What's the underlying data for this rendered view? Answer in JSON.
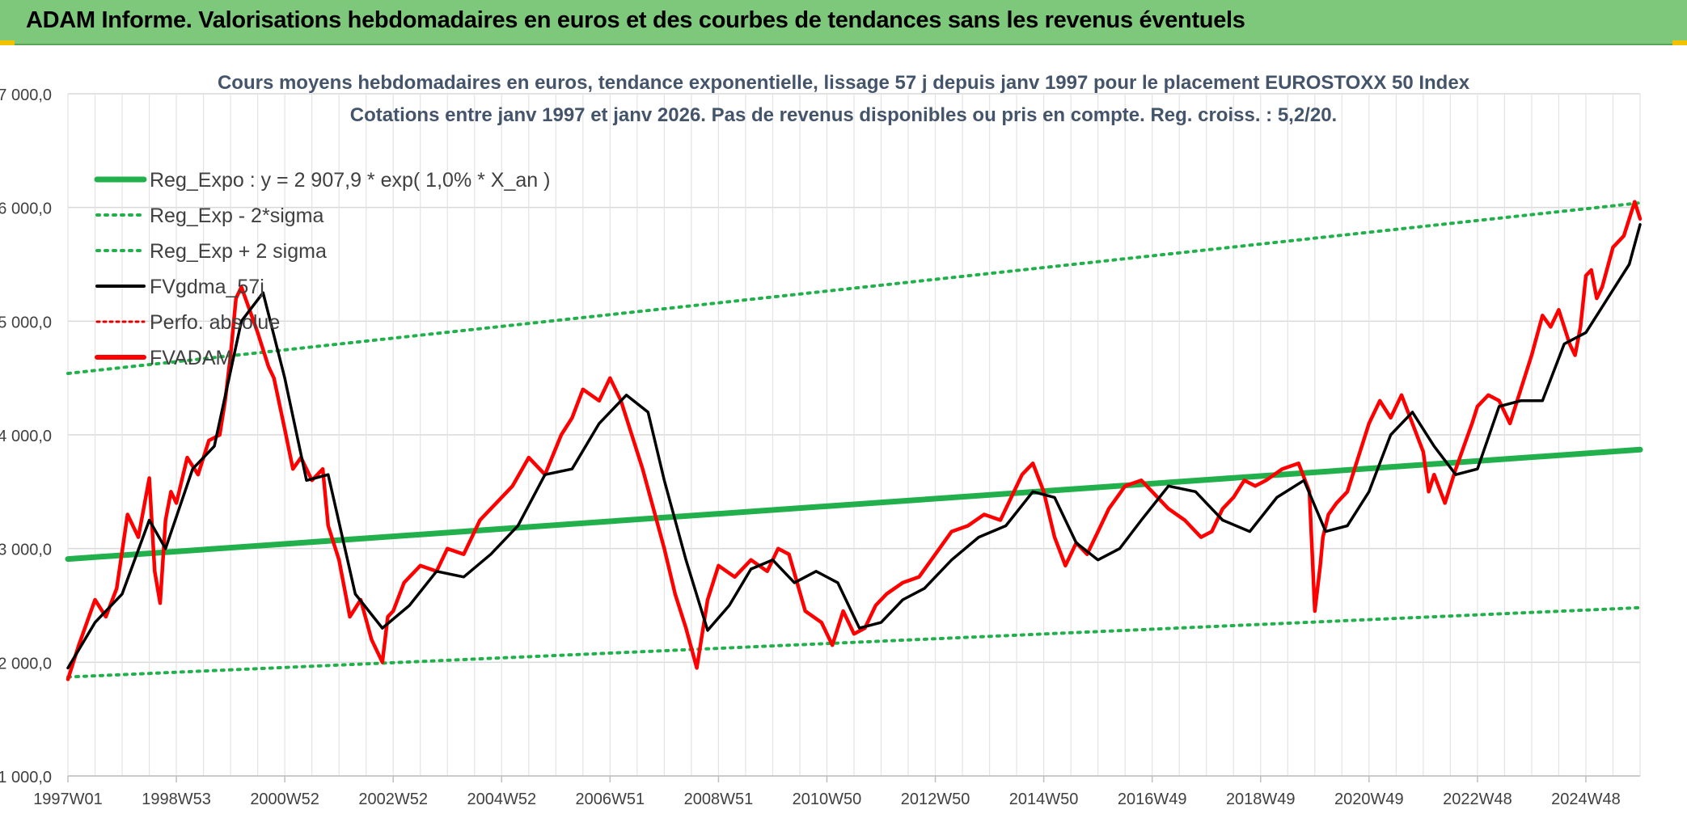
{
  "header": {
    "title": "ADAM Informe. Valorisations hebdomadaires en euros et des courbes de tendances sans les revenus éventuels"
  },
  "chart_data": {
    "type": "line",
    "title": "Cours moyens hebdomadaires en euros, tendance exponentielle, lissage 57 j depuis janv 1997 pour le placement EUROSTOXX 50 Index",
    "subtitle": "Cotations entre janv 1997 et janv 2026. Pas de revenus disponibles ou pris en compte. Reg. croiss. : 5,2/20.",
    "ylim": [
      1000,
      7000
    ],
    "y_ticks": [
      "1 000,0",
      "2 000,0",
      "3 000,0",
      "4 000,0",
      "5 000,0",
      "6 000,0",
      "7 000,0"
    ],
    "x_tick_labels": [
      "1997W01",
      "1998W53",
      "2000W52",
      "2002W52",
      "2004W52",
      "2006W51",
      "2008W51",
      "2010W50",
      "2012W50",
      "2014W50",
      "2016W49",
      "2018W49",
      "2020W49",
      "2022W48",
      "2024W48"
    ],
    "x_range": [
      1997.0,
      2026.0
    ],
    "grid": true,
    "legend_position": "top-left",
    "colors": {
      "reg_expo": "#22b04c",
      "sigma": "#22b04c",
      "smooth": "#000000",
      "perfo": "#e00000",
      "fvadam": "#ff0000"
    },
    "series": [
      {
        "name": "Reg_Expo : y = 2 907,9 * exp( 1,0% *  X_an )",
        "style": "thick-solid",
        "color": "#22b04c",
        "x": [
          1997.0,
          2026.0
        ],
        "values": [
          2907.9,
          3870
        ]
      },
      {
        "name": "Reg_Exp - 2*sigma",
        "style": "dotted",
        "color": "#22b04c",
        "x": [
          1997.0,
          2026.0
        ],
        "values": [
          1870,
          2480
        ]
      },
      {
        "name": "Reg_Exp + 2 sigma",
        "style": "dotted",
        "color": "#22b04c",
        "x": [
          1997.0,
          2026.0
        ],
        "values": [
          4540,
          6040
        ]
      },
      {
        "name": "FVgdma_57j",
        "style": "solid",
        "color": "#000000",
        "x": [
          1997.0,
          1997.5,
          1998.0,
          1998.5,
          1998.8,
          1999.3,
          1999.7,
          2000.2,
          2000.6,
          2001.0,
          2001.4,
          2001.8,
          2002.3,
          2002.8,
          2003.3,
          2003.8,
          2004.3,
          2004.8,
          2005.3,
          2005.8,
          2006.3,
          2006.8,
          2007.3,
          2007.7,
          2008.0,
          2008.4,
          2008.8,
          2009.2,
          2009.6,
          2010.0,
          2010.4,
          2010.8,
          2011.2,
          2011.6,
          2012.0,
          2012.4,
          2012.8,
          2013.3,
          2013.8,
          2014.3,
          2014.8,
          2015.2,
          2015.6,
          2016.0,
          2016.4,
          2016.8,
          2017.3,
          2017.8,
          2018.3,
          2018.8,
          2019.3,
          2019.8,
          2020.2,
          2020.6,
          2021.0,
          2021.4,
          2021.8,
          2022.2,
          2022.6,
          2023.0,
          2023.4,
          2023.8,
          2024.2,
          2024.6,
          2025.0,
          2025.4,
          2025.8,
          2026.0
        ],
        "values": [
          1950,
          2350,
          2600,
          3250,
          3000,
          3700,
          3900,
          5000,
          5250,
          4500,
          3600,
          3650,
          2600,
          2300,
          2500,
          2800,
          2750,
          2950,
          3200,
          3650,
          3700,
          4100,
          4350,
          4200,
          3600,
          2900,
          2280,
          2500,
          2820,
          2900,
          2700,
          2800,
          2700,
          2300,
          2350,
          2550,
          2650,
          2900,
          3100,
          3200,
          3500,
          3450,
          3050,
          2900,
          3000,
          3250,
          3550,
          3500,
          3250,
          3150,
          3450,
          3600,
          3150,
          3200,
          3500,
          4000,
          4200,
          3900,
          3650,
          3700,
          4250,
          4300,
          4300,
          4800,
          4900,
          5200,
          5500,
          5850
        ]
      },
      {
        "name": "Perfo. absolue",
        "style": "dotted",
        "color": "#e00000",
        "x": [],
        "values": []
      },
      {
        "name": "FVADAM",
        "style": "solid-thick",
        "color": "#ff0000",
        "x": [
          1997.0,
          1997.2,
          1997.5,
          1997.7,
          1997.9,
          1998.1,
          1998.3,
          1998.5,
          1998.6,
          1998.7,
          1998.8,
          1998.9,
          1999.0,
          1999.2,
          1999.4,
          1999.6,
          1999.8,
          1999.9,
          2000.0,
          2000.1,
          2000.2,
          2000.35,
          2000.5,
          2000.7,
          2000.8,
          2001.0,
          2001.15,
          2001.3,
          2001.5,
          2001.7,
          2001.8,
          2002.0,
          2002.2,
          2002.4,
          2002.6,
          2002.8,
          2002.9,
          2003.0,
          2003.2,
          2003.5,
          2003.8,
          2004.0,
          2004.3,
          2004.6,
          2004.9,
          2005.2,
          2005.5,
          2005.8,
          2006.1,
          2006.3,
          2006.5,
          2006.8,
          2007.0,
          2007.2,
          2007.4,
          2007.5,
          2007.6,
          2007.8,
          2008.0,
          2008.2,
          2008.4,
          2008.6,
          2008.8,
          2008.9,
          2009.0,
          2009.3,
          2009.6,
          2009.9,
          2010.1,
          2010.3,
          2010.6,
          2010.9,
          2011.1,
          2011.3,
          2011.5,
          2011.7,
          2011.9,
          2012.1,
          2012.4,
          2012.7,
          2013.0,
          2013.3,
          2013.6,
          2013.9,
          2014.2,
          2014.4,
          2014.6,
          2014.8,
          2015.0,
          2015.2,
          2015.4,
          2015.6,
          2015.8,
          2016.0,
          2016.2,
          2016.5,
          2016.8,
          2017.0,
          2017.3,
          2017.6,
          2017.9,
          2018.1,
          2018.3,
          2018.5,
          2018.7,
          2018.9,
          2019.1,
          2019.4,
          2019.7,
          2019.9,
          2020.0,
          2020.1,
          2020.15,
          2020.25,
          2020.4,
          2020.6,
          2020.8,
          2021.0,
          2021.2,
          2021.4,
          2021.6,
          2021.8,
          2022.0,
          2022.1,
          2022.2,
          2022.4,
          2022.6,
          2022.75,
          2022.9,
          2023.0,
          2023.2,
          2023.4,
          2023.6,
          2023.8,
          2024.0,
          2024.2,
          2024.35,
          2024.5,
          2024.7,
          2024.8,
          2024.9,
          2025.0,
          2025.1,
          2025.2,
          2025.3,
          2025.5,
          2025.7,
          2025.9,
          2026.0
        ],
        "values": [
          1850,
          2150,
          2550,
          2400,
          2650,
          3300,
          3100,
          3620,
          2800,
          2520,
          3250,
          3500,
          3400,
          3800,
          3650,
          3950,
          4000,
          4300,
          4700,
          5200,
          5300,
          5100,
          4900,
          4600,
          4500,
          4050,
          3700,
          3800,
          3600,
          3700,
          3200,
          2900,
          2400,
          2550,
          2200,
          2000,
          2400,
          2450,
          2700,
          2850,
          2800,
          3000,
          2950,
          3250,
          3400,
          3550,
          3800,
          3650,
          4000,
          4150,
          4400,
          4300,
          4500,
          4300,
          4000,
          3850,
          3700,
          3350,
          3000,
          2600,
          2300,
          1950,
          2550,
          2700,
          2850,
          2750,
          2900,
          2800,
          3000,
          2950,
          2450,
          2350,
          2150,
          2450,
          2250,
          2300,
          2500,
          2600,
          2700,
          2750,
          2950,
          3150,
          3200,
          3300,
          3250,
          3450,
          3650,
          3750,
          3500,
          3100,
          2850,
          3050,
          2950,
          3150,
          3350,
          3550,
          3600,
          3500,
          3350,
          3250,
          3100,
          3150,
          3350,
          3450,
          3600,
          3550,
          3600,
          3700,
          3750,
          3500,
          2450,
          2850,
          3100,
          3300,
          3400,
          3500,
          3800,
          4100,
          4300,
          4150,
          4350,
          4100,
          3850,
          3500,
          3650,
          3400,
          3700,
          3900,
          4100,
          4250,
          4350,
          4300,
          4100,
          4400,
          4700,
          5050,
          4950,
          5100,
          4800,
          4700,
          4950,
          5400,
          5450,
          5200,
          5300,
          5650,
          5750,
          6050,
          5900
        ]
      }
    ]
  }
}
